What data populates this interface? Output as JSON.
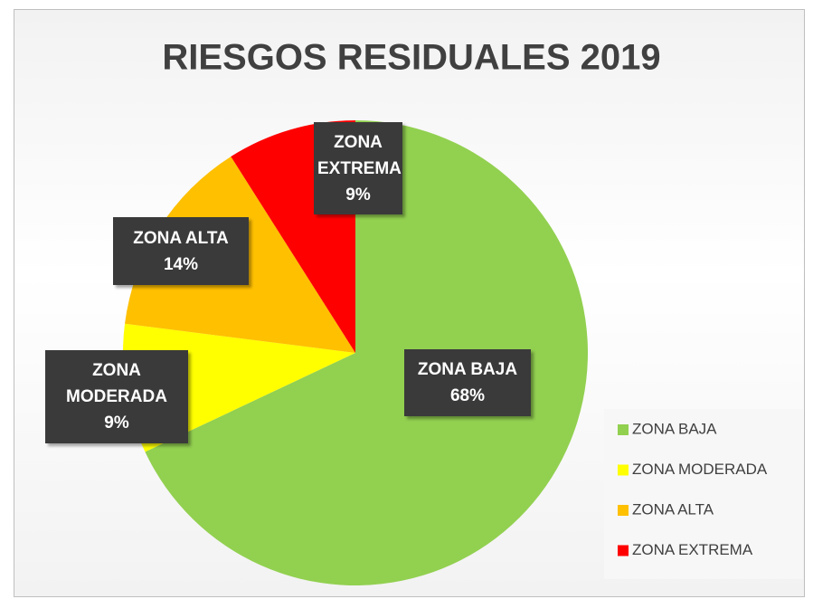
{
  "chart_data": {
    "type": "pie",
    "title": "RIESGOS RESIDUALES 2019",
    "categories": [
      "ZONA BAJA",
      "ZONA MODERADA",
      "ZONA ALTA",
      "ZONA EXTREMA"
    ],
    "values": [
      68,
      9,
      14,
      9
    ],
    "value_labels": [
      "68%",
      "9%",
      "14%",
      "9%"
    ],
    "colors": [
      "#92d050",
      "#ffff00",
      "#ffc000",
      "#ff0000"
    ],
    "legend": "right"
  }
}
